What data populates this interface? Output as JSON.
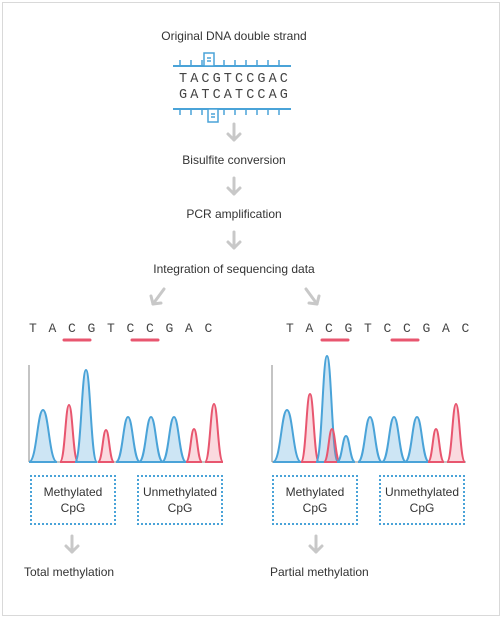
{
  "title": "Original DNA double strand",
  "top_strand": "TACGTCCGAC",
  "bottom_strand": "GATCATCCAG",
  "steps": [
    "Bisulfite conversion",
    "PCR amplification",
    "Integration of sequencing data"
  ],
  "left": {
    "sequence": [
      "T",
      "A",
      "C",
      "G",
      "T",
      "C",
      "C",
      "G",
      "A",
      "C"
    ],
    "box1": {
      "line1": "Methylated",
      "line2": "CpG"
    },
    "box2": {
      "line1": "Unmethylated",
      "line2": "CpG"
    },
    "result": "Total methylation"
  },
  "right": {
    "sequence": [
      "T",
      "A",
      "C",
      "G",
      "T",
      "C",
      "C",
      "G",
      "A",
      "C"
    ],
    "box1": {
      "line1": "Methylated",
      "line2": "CpG"
    },
    "box2": {
      "line1": "Unmethylated",
      "line2": "CpG"
    },
    "result": "Partial methylation"
  },
  "colors": {
    "blue": "#4aa3d8",
    "red": "#e8566f",
    "arrow": "#c8c8c8"
  }
}
